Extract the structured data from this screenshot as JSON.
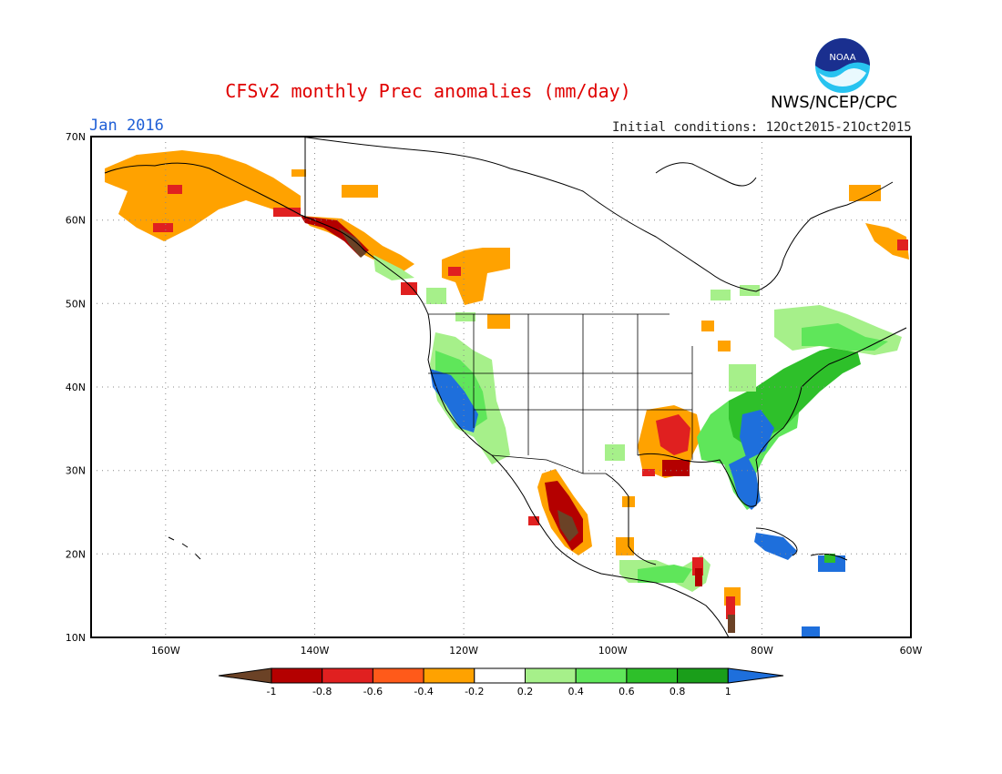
{
  "header": {
    "title": "CFSv2 monthly Prec anomalies (mm/day)",
    "month": "Jan 2016",
    "initial_conditions": "Initial conditions: 12Oct2015-21Oct2015",
    "agency": "NWS/NCEP/CPC",
    "logo_text": "NOAA"
  },
  "map": {
    "lat_labels": [
      "70N",
      "60N",
      "50N",
      "40N",
      "30N",
      "20N",
      "10N"
    ],
    "lon_labels": [
      "160W",
      "140W",
      "120W",
      "100W",
      "80W",
      "60W"
    ]
  },
  "legend": {
    "labels": [
      "-1",
      "-0.8",
      "-0.6",
      "-0.4",
      "-0.2",
      "0.2",
      "0.4",
      "0.6",
      "0.8",
      "1"
    ],
    "colors": [
      "#6b4226",
      "#b40000",
      "#e02020",
      "#ff5a1a",
      "#ffa200",
      "#ffffff",
      "#a6f08a",
      "#5fe65a",
      "#2ec02a",
      "#1a9e1a",
      "#1e6fdc"
    ]
  }
}
